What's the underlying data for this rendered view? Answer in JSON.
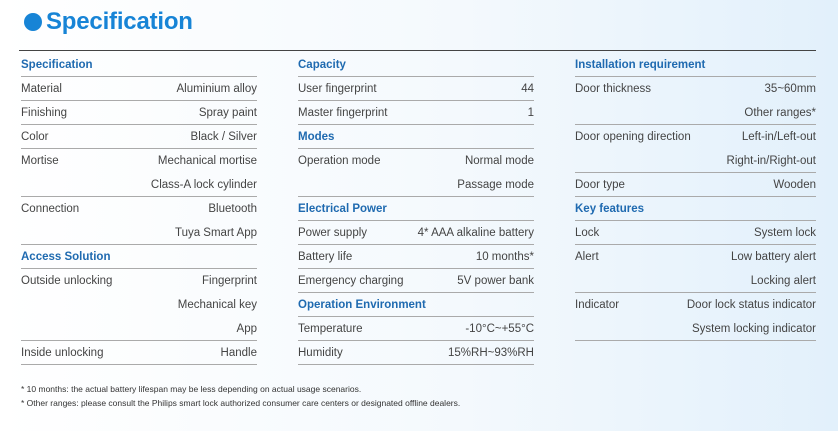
{
  "title": "Specification",
  "col1": {
    "specification": {
      "heading": "Specification",
      "material_label": "Material",
      "material_value": "Aluminium alloy",
      "finishing_label": "Finishing",
      "finishing_value": "Spray paint",
      "color_label": "Color",
      "color_value": "Black / Silver",
      "mortise_label": "Mortise",
      "mortise_value1": "Mechanical mortise",
      "mortise_value2": "Class-A lock cylinder",
      "connection_label": "Connection",
      "connection_value1": "Bluetooth",
      "connection_value2": "Tuya Smart App"
    },
    "access": {
      "heading": "Access Solution",
      "outside_label": "Outside unlocking",
      "outside_value1": "Fingerprint",
      "outside_value2": "Mechanical key",
      "outside_value3": "App",
      "inside_label": "Inside unlocking",
      "inside_value": "Handle"
    }
  },
  "col2": {
    "capacity": {
      "heading": "Capacity",
      "user_fp_label": "User fingerprint",
      "user_fp_value": "44",
      "master_fp_label": "Master fingerprint",
      "master_fp_value": "1"
    },
    "modes": {
      "heading": "Modes",
      "op_label": "Operation mode",
      "op_value1": "Normal mode",
      "op_value2": "Passage mode"
    },
    "power": {
      "heading": "Electrical Power",
      "supply_label": "Power supply",
      "supply_value": "4* AAA alkaline battery",
      "life_label": "Battery life",
      "life_value": "10 months*",
      "emergency_label": "Emergency charging",
      "emergency_value": "5V power bank"
    },
    "environment": {
      "heading": "Operation Environment",
      "temp_label": "Temperature",
      "temp_value": "-10°C~+55°C",
      "humidity_label": "Humidity",
      "humidity_value": "15%RH~93%RH"
    }
  },
  "col3": {
    "installation": {
      "heading": "Installation requirement",
      "thickness_label": "Door thickness",
      "thickness_value1": "35~60mm",
      "thickness_value2": "Other ranges*",
      "direction_label": "Door opening direction",
      "direction_value1": "Left-in/Left-out",
      "direction_value2": "Right-in/Right-out",
      "type_label": "Door type",
      "type_value": "Wooden"
    },
    "features": {
      "heading": "Key features",
      "lock_label": "Lock",
      "lock_value": "System lock",
      "alert_label": "Alert",
      "alert_value1": "Low battery alert",
      "alert_value2": "Locking alert",
      "indicator_label": "Indicator",
      "indicator_value1": "Door lock status indicator",
      "indicator_value2": "System locking indicator"
    }
  },
  "footnotes": {
    "note1": "* 10 months: the actual battery lifespan may be less depending on actual usage scenarios.",
    "note2": "* Other ranges:  please consult the Philips smart lock authorized consumer care centers or designated offline dealers."
  },
  "colors": {
    "accent": "#1784d6",
    "heading": "#1f6ab0"
  }
}
